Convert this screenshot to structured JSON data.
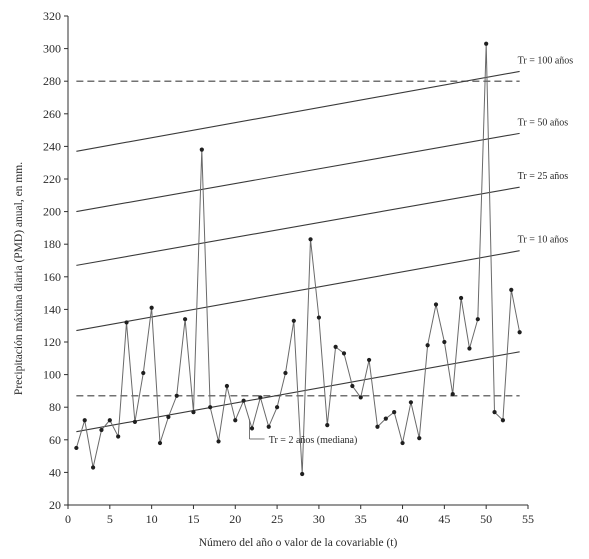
{
  "chart_data": {
    "type": "line",
    "xlabel": "Número del año o valor de la covariable (t)",
    "ylabel": "Precipitación máxima diaria (PMD) anual, en mm.",
    "xlim": [
      0,
      55
    ],
    "ylim": [
      20,
      320
    ],
    "x_ticks": [
      0,
      5,
      10,
      15,
      20,
      25,
      30,
      35,
      40,
      45,
      50,
      55
    ],
    "y_ticks": [
      20,
      40,
      60,
      80,
      100,
      120,
      140,
      160,
      180,
      200,
      220,
      240,
      260,
      280,
      300,
      320
    ],
    "series": [
      {
        "style": "line-markers",
        "x": [
          1,
          2,
          3,
          4,
          5,
          6,
          7,
          8,
          9,
          10,
          11,
          12,
          13,
          14,
          15,
          16,
          17,
          18,
          19,
          20,
          21,
          22,
          23,
          24,
          25,
          26,
          27,
          28,
          29,
          30,
          31,
          32,
          33,
          34,
          35,
          36,
          37,
          38,
          39,
          40,
          41,
          42,
          43,
          44,
          45,
          46,
          47,
          48,
          49,
          50,
          51,
          52,
          53,
          54
        ],
        "y": [
          55,
          72,
          43,
          66,
          72,
          62,
          132,
          71,
          101,
          141,
          58,
          74,
          87,
          134,
          77,
          238,
          80,
          59,
          93,
          72,
          84,
          67,
          86,
          68,
          80,
          101,
          133,
          39,
          183,
          135,
          69,
          117,
          113,
          93,
          86,
          109,
          68,
          73,
          77,
          58,
          83,
          61,
          118,
          143,
          120,
          88,
          147,
          116,
          134,
          303,
          77,
          72,
          152,
          126
        ]
      }
    ],
    "trend_lines": [
      {
        "label": "Tr = 100 años",
        "x": [
          1,
          54
        ],
        "y": [
          237,
          286
        ]
      },
      {
        "label": "Tr = 50 años",
        "x": [
          1,
          54
        ],
        "y": [
          200,
          248
        ]
      },
      {
        "label": "Tr = 25 años",
        "x": [
          1,
          54
        ],
        "y": [
          167,
          215
        ]
      },
      {
        "label": "Tr = 10 años",
        "x": [
          1,
          54
        ],
        "y": [
          127,
          176
        ]
      },
      {
        "label": "Tr = 2 años (mediana)",
        "x": [
          1,
          54
        ],
        "y": [
          65,
          114
        ]
      }
    ],
    "reference_lines": [
      {
        "y": 280,
        "x": [
          1,
          54
        ],
        "style": "dashed"
      },
      {
        "y": 87,
        "x": [
          1,
          54
        ],
        "style": "dashed"
      }
    ],
    "grid": false
  }
}
